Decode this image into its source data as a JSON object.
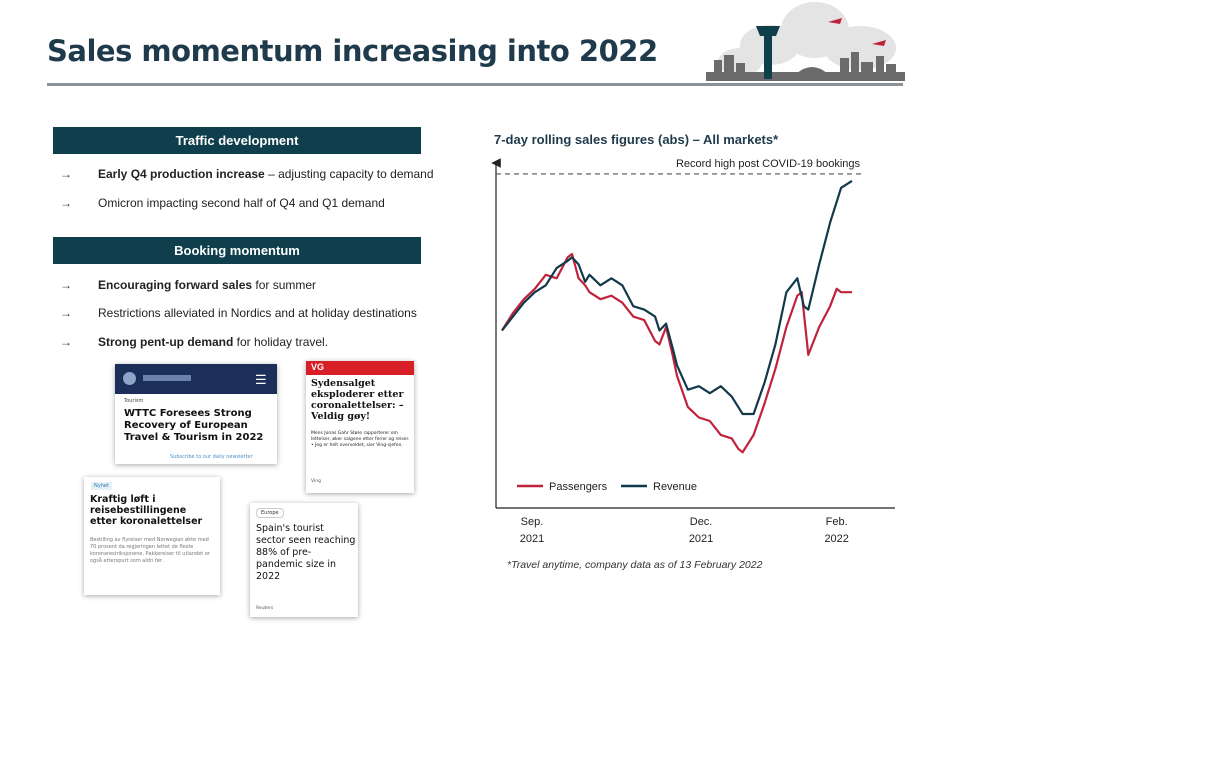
{
  "title": "Sales momentum increasing into 2022",
  "left_panel": {
    "sections": [
      {
        "heading": "Traffic development",
        "bullets": [
          {
            "bold": "Early Q4 production increase",
            "rest": " – adjusting capacity to demand"
          },
          {
            "bold": "",
            "rest": "Omicron impacting second half of Q4 and Q1 demand"
          }
        ]
      },
      {
        "heading": "Booking momentum",
        "bullets": [
          {
            "bold": "Encouraging forward sales",
            "rest": " for summer"
          },
          {
            "bold": "",
            "rest": "Restrictions alleviated in Nordics and at holiday destinations"
          },
          {
            "bold": "Strong pent-up demand",
            "rest": " for holiday travel."
          }
        ]
      }
    ],
    "bullet_glyph": "→"
  },
  "news_clips": [
    {
      "id": "wttc",
      "label": "Tourism",
      "headline": "WTTC Foresees Strong Recovery of European Travel & Tourism in 2022",
      "footer": "Subscribe to our daily newsletter"
    },
    {
      "id": "vg",
      "brand": "VG",
      "headline": "Sydensalget eksploderer etter coronalettelser: – Veldig gøy!",
      "body": "Mens Jonas Gahr Støre rapporterer om lettelser, øker salgene etter ferier og reiser. • Jeg er helt overveldet, sier Ving-sjefen.",
      "footer": "Ving"
    },
    {
      "id": "nrk",
      "tag": "Nyhet",
      "headline": "Kraftig løft i reisebestillingene etter koronalettelser",
      "body": "Bestilling av flyreiser med Norwegian økte med 70 prosent da regjeringen lettet de fleste koronarestriksjonene. Pakkereiser til utlandet er også etterspurt som aldri før."
    },
    {
      "id": "spain",
      "tag": "Europe",
      "headline": "Spain's tourist sector seen reaching 88% of pre-pandemic size in 2022",
      "footer": "Reuters"
    }
  ],
  "chart_data": {
    "type": "line",
    "title": "7-day rolling sales figures (abs) – All markets*",
    "xlabel": "",
    "ylabel": "",
    "x_ticks": [
      {
        "label_line1": "Sep.",
        "label_line2": "2021",
        "x": 0
      },
      {
        "label_line1": "Dec.",
        "label_line2": "2021",
        "x": 91
      },
      {
        "label_line1": "Feb.",
        "label_line2": "2022",
        "x": 153
      }
    ],
    "x_range": [
      0,
      160
    ],
    "ylim": [
      0,
      100
    ],
    "y_ticks_shown": false,
    "grid": false,
    "legend_position": "bottom-left",
    "reference_line": {
      "y": 96,
      "label": "Record high post COVID-19 bookings",
      "style": "dashed"
    },
    "series": [
      {
        "name": "Passengers",
        "color": "#c0223b",
        "x": [
          0,
          5,
          10,
          15,
          20,
          25,
          30,
          32,
          35,
          38,
          40,
          45,
          50,
          55,
          60,
          65,
          70,
          72,
          75,
          78,
          80,
          85,
          90,
          95,
          100,
          105,
          108,
          110,
          115,
          120,
          125,
          130,
          135,
          137,
          140,
          145,
          150,
          153,
          155,
          160
        ],
        "y": [
          51,
          56,
          60,
          63,
          67,
          66,
          72,
          73,
          66,
          64,
          62,
          60,
          61,
          59,
          55,
          54,
          48,
          47,
          52,
          44,
          38,
          29,
          26,
          25,
          21,
          20,
          17,
          16,
          21,
          30,
          40,
          52,
          61,
          62,
          44,
          52,
          58,
          63,
          62,
          62
        ]
      },
      {
        "name": "Revenue",
        "color": "#12394a",
        "x": [
          0,
          5,
          10,
          15,
          20,
          25,
          30,
          32,
          35,
          38,
          40,
          45,
          50,
          55,
          60,
          65,
          70,
          72,
          75,
          78,
          80,
          85,
          90,
          95,
          100,
          105,
          108,
          110,
          115,
          120,
          125,
          130,
          135,
          138,
          140,
          145,
          150,
          153,
          155,
          160
        ],
        "y": [
          51,
          55,
          59,
          62,
          64,
          69,
          71,
          72,
          70,
          65,
          67,
          64,
          66,
          64,
          58,
          57,
          55,
          51,
          53,
          46,
          41,
          34,
          35,
          33,
          35,
          32,
          29,
          27,
          27,
          36,
          47,
          62,
          66,
          58,
          57,
          70,
          82,
          88,
          92,
          94
        ]
      }
    ],
    "footnote": "*Travel anytime, company data as of 13 February 2022"
  }
}
